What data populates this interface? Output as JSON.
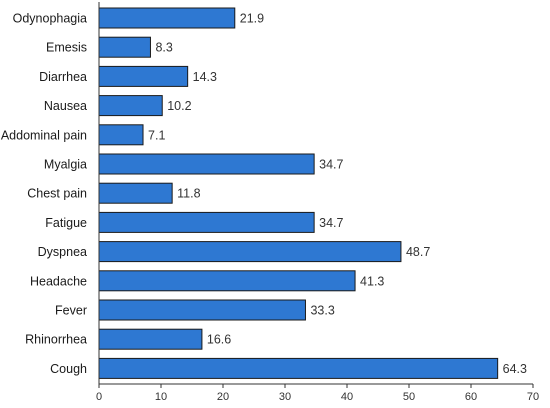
{
  "chart_data": {
    "type": "bar",
    "orientation": "horizontal",
    "title": "",
    "xlabel": "",
    "ylabel": "",
    "categories": [
      "Odynophagia",
      "Emesis",
      "Diarrhea",
      "Nausea",
      "Addominal pain",
      "Myalgia",
      "Chest pain",
      "Fatigue",
      "Dyspnea",
      "Headache",
      "Fever",
      "Rhinorrhea",
      "Cough"
    ],
    "values": [
      21.9,
      8.3,
      14.3,
      10.2,
      7.1,
      34.7,
      11.8,
      34.7,
      48.7,
      41.3,
      33.3,
      16.6,
      64.3
    ],
    "value_labels": [
      "21.9",
      "8.3",
      "14.3",
      "10.2",
      "7.1",
      "34.7",
      "11.8",
      "34.7",
      "48.7",
      "41.3",
      "33.3",
      "16.6",
      "64.3"
    ],
    "xlim": [
      0,
      70
    ],
    "xticks": [
      0,
      10,
      20,
      30,
      40,
      50,
      60,
      70
    ],
    "xtick_labels": [
      "0",
      "10",
      "20",
      "30",
      "40",
      "50",
      "60",
      "70"
    ],
    "grid": false,
    "legend": "none",
    "bar_color": "#2e78d2",
    "bar_edge_color": "#1a1a1a"
  }
}
